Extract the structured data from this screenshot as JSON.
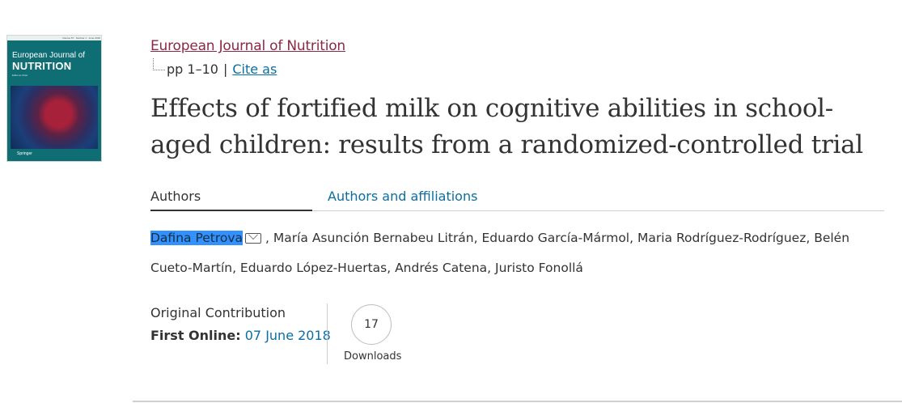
{
  "journal": {
    "name": "European Journal of Nutrition",
    "pages": "pp 1–10",
    "separator": "|",
    "cite_label": "Cite as"
  },
  "cover": {
    "volume_text": "Volume 57 · Number 1 · June 2018",
    "title_line1": "European Journal of",
    "title_line2": "NUTRITION",
    "editor_text": "Editor-in-Chief",
    "publisher": "Springer"
  },
  "article": {
    "title": "Effects of fortified milk on cognitive abilities in school-aged children: results from a randomized-controlled trial"
  },
  "tabs": {
    "authors": "Authors",
    "affiliations": "Authors and affiliations"
  },
  "authors": {
    "first": "Dafina Petrova",
    "rest": ", María Asunción Bernabeu Litrán, Eduardo García-Mármol, Maria Rodríguez-Rodríguez, Belén Cueto-Martín, Eduardo López-Huertas, Andrés Catena, Juristo Fonollá"
  },
  "info": {
    "type": "Original Contribution",
    "first_online_label": "First Online:",
    "first_online_date": "07 June 2018",
    "downloads_count": "17",
    "downloads_label": "Downloads"
  },
  "colors": {
    "journal_link": "#8a2846",
    "link_blue": "#0a6ea3",
    "selection": "#3390ff"
  }
}
